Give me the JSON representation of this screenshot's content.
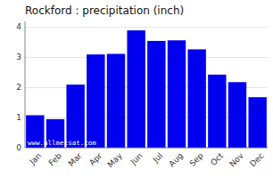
{
  "chart_data": {
    "type": "bar",
    "title": "Rockford : precipitation (inch)",
    "categories": [
      "Jan",
      "Feb",
      "Mar",
      "Apr",
      "May",
      "Jun",
      "Jul",
      "Aug",
      "Sep",
      "Oct",
      "Nov",
      "Dec"
    ],
    "values": [
      1.08,
      0.95,
      2.1,
      3.1,
      3.12,
      3.9,
      3.55,
      3.57,
      3.27,
      2.43,
      2.18,
      1.68
    ],
    "color": "#0000EE",
    "ylim": [
      0,
      4.2
    ],
    "yticks": [
      0,
      1,
      2,
      3,
      4
    ],
    "grid": true,
    "annotations": [
      "www.allmetsat.com"
    ]
  }
}
